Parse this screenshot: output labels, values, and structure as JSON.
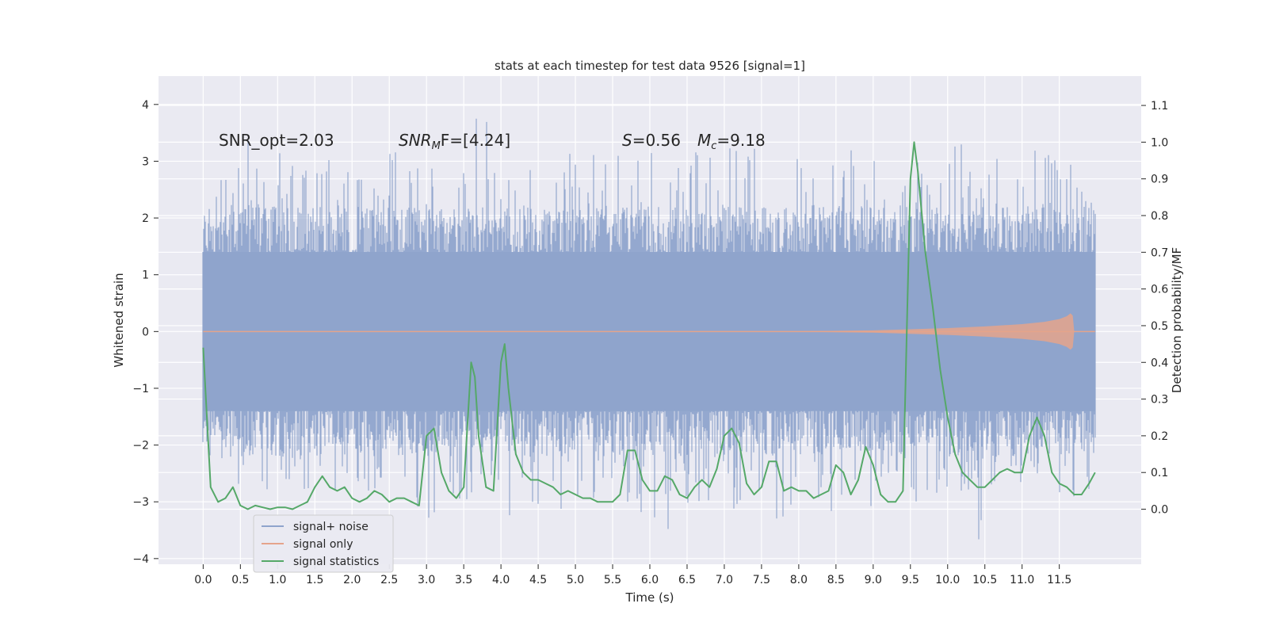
{
  "chart_data": {
    "type": "line",
    "title": "stats at each timestep for test data 9526 [signal=1]",
    "xlabel": "Time (s)",
    "ylabel": "Whitened strain",
    "y2label": "Detection probability/MF",
    "xlim": [
      -0.6,
      12.6
    ],
    "ylim": [
      -4.1,
      4.5
    ],
    "y2lim": [
      -0.15,
      1.18
    ],
    "xticks": [
      0.0,
      0.5,
      1.0,
      1.5,
      2.0,
      2.5,
      3.0,
      3.5,
      4.0,
      4.5,
      5.0,
      5.5,
      6.0,
      6.5,
      7.0,
      7.5,
      8.0,
      8.5,
      9.0,
      9.5,
      10.0,
      10.5,
      11.0,
      11.5
    ],
    "xtick_labels": [
      "0.0",
      "0.5",
      "1.0",
      "1.5",
      "2.0",
      "2.5",
      "3.0",
      "3.5",
      "4.0",
      "4.5",
      "5.0",
      "5.5",
      "6.0",
      "6.5",
      "7.0",
      "7.5",
      "8.0",
      "8.5",
      "9.0",
      "9.5",
      "10.0",
      "10.5",
      "11.0",
      "11.5"
    ],
    "yticks": [
      -4,
      -3,
      -2,
      -1,
      0,
      1,
      2,
      3,
      4
    ],
    "ytick_labels": [
      "−4",
      "−3",
      "−2",
      "−1",
      "0",
      "1",
      "2",
      "3",
      "4"
    ],
    "y2ticks": [
      0.0,
      0.1,
      0.2,
      0.3,
      0.4,
      0.5,
      0.6,
      0.7,
      0.8,
      0.9,
      1.0,
      1.1
    ],
    "y2tick_labels": [
      "0.0",
      "0.1",
      "0.2",
      "0.3",
      "0.4",
      "0.5",
      "0.6",
      "0.7",
      "0.8",
      "0.9",
      "1.0",
      "1.1"
    ],
    "grid": true,
    "legend_position": "lower-left",
    "annotations": {
      "snr_opt": "SNR_opt=2.03",
      "snr_mf_main": "SNR",
      "snr_mf_sub": "M",
      "snr_mf_rest": "F=[4.24]",
      "s_main": "S",
      "s_rest": "=0.56",
      "mc_main": "M",
      "mc_sub": "c",
      "mc_rest": "=9.18"
    },
    "noise_envelope": {
      "x": [
        0.0,
        0.25,
        0.5,
        0.75,
        1.0,
        1.25,
        1.5,
        1.75,
        2.0,
        2.25,
        2.5,
        2.75,
        3.0,
        3.25,
        3.5,
        3.75,
        4.0,
        4.25,
        4.5,
        4.75,
        5.0,
        5.25,
        5.5,
        5.75,
        6.0,
        6.25,
        6.5,
        6.75,
        7.0,
        7.25,
        7.5,
        7.75,
        8.0,
        8.25,
        8.5,
        8.75,
        9.0,
        9.25,
        9.5,
        9.75,
        10.0,
        10.25,
        10.5,
        10.75,
        11.0,
        11.25,
        11.5,
        11.75,
        11.98
      ],
      "upper": [
        2.5,
        2.8,
        3.9,
        2.9,
        3.4,
        3.0,
        2.8,
        3.5,
        3.0,
        2.7,
        3.3,
        3.1,
        3.6,
        2.9,
        3.5,
        4.0,
        3.4,
        3.0,
        2.8,
        3.2,
        3.9,
        3.1,
        3.3,
        2.9,
        3.3,
        3.0,
        4.0,
        3.1,
        3.4,
        3.6,
        3.3,
        2.8,
        3.2,
        3.0,
        3.1,
        3.6,
        3.2,
        3.0,
        3.5,
        3.4,
        3.3,
        4.1,
        3.2,
        3.0,
        3.1,
        3.3,
        3.2,
        3.0,
        2.7
      ],
      "lower": [
        -2.1,
        -2.6,
        -3.1,
        -2.9,
        -2.8,
        -2.7,
        -2.9,
        -3.0,
        -2.6,
        -3.2,
        -2.8,
        -3.0,
        -3.5,
        -2.9,
        -3.4,
        -2.8,
        -3.6,
        -3.0,
        -3.3,
        -3.1,
        -3.2,
        -3.0,
        -3.4,
        -3.0,
        -3.6,
        -3.7,
        -3.2,
        -3.0,
        -3.5,
        -3.0,
        -3.1,
        -3.4,
        -3.0,
        -3.2,
        -3.4,
        -3.0,
        -3.3,
        -3.0,
        -3.2,
        -3.1,
        -3.0,
        -3.6,
        -3.7,
        -3.0,
        -3.2,
        -2.9,
        -3.3,
        -3.0,
        -2.7
      ],
      "core": 1.4
    },
    "series": [
      {
        "name": "signal+ noise",
        "color": "#8fa4cc",
        "axis": "left"
      },
      {
        "name": "signal only",
        "color": "#e5a48b",
        "axis": "left",
        "x": [
          0.0,
          8.0,
          9.0,
          9.5,
          10.0,
          10.5,
          11.0,
          11.3,
          11.5,
          11.6,
          11.65,
          11.68,
          11.7
        ],
        "envelope": [
          0.0,
          0.005,
          0.02,
          0.04,
          0.06,
          0.09,
          0.13,
          0.17,
          0.22,
          0.27,
          0.32,
          0.28,
          0.0
        ]
      },
      {
        "name": "signal statistics",
        "color": "#55a868",
        "axis": "right",
        "x": [
          0.0,
          0.1,
          0.2,
          0.3,
          0.4,
          0.5,
          0.6,
          0.7,
          0.8,
          0.9,
          1.0,
          1.1,
          1.2,
          1.3,
          1.4,
          1.5,
          1.6,
          1.7,
          1.8,
          1.9,
          2.0,
          2.1,
          2.2,
          2.3,
          2.4,
          2.5,
          2.6,
          2.7,
          2.8,
          2.9,
          3.0,
          3.1,
          3.2,
          3.3,
          3.4,
          3.5,
          3.6,
          3.65,
          3.7,
          3.8,
          3.9,
          4.0,
          4.05,
          4.1,
          4.2,
          4.3,
          4.4,
          4.5,
          4.6,
          4.7,
          4.8,
          4.9,
          5.0,
          5.1,
          5.2,
          5.3,
          5.4,
          5.5,
          5.6,
          5.7,
          5.8,
          5.9,
          6.0,
          6.1,
          6.2,
          6.3,
          6.4,
          6.5,
          6.6,
          6.7,
          6.8,
          6.9,
          7.0,
          7.1,
          7.2,
          7.3,
          7.4,
          7.5,
          7.6,
          7.7,
          7.8,
          7.9,
          8.0,
          8.1,
          8.2,
          8.3,
          8.4,
          8.5,
          8.6,
          8.7,
          8.8,
          8.9,
          9.0,
          9.1,
          9.2,
          9.3,
          9.4,
          9.5,
          9.55,
          9.6,
          9.7,
          9.8,
          9.9,
          10.0,
          10.1,
          10.2,
          10.3,
          10.4,
          10.5,
          10.6,
          10.7,
          10.8,
          10.9,
          11.0,
          11.1,
          11.2,
          11.3,
          11.4,
          11.5,
          11.6,
          11.7,
          11.8,
          11.9,
          11.98
        ],
        "values": [
          0.44,
          0.06,
          0.02,
          0.03,
          0.06,
          0.01,
          0.0,
          0.01,
          0.005,
          0.0,
          0.005,
          0.005,
          0.0,
          0.01,
          0.02,
          0.06,
          0.09,
          0.06,
          0.05,
          0.06,
          0.03,
          0.02,
          0.03,
          0.05,
          0.04,
          0.02,
          0.03,
          0.03,
          0.02,
          0.01,
          0.2,
          0.22,
          0.1,
          0.05,
          0.03,
          0.06,
          0.4,
          0.36,
          0.2,
          0.06,
          0.05,
          0.4,
          0.45,
          0.33,
          0.15,
          0.1,
          0.08,
          0.08,
          0.07,
          0.06,
          0.04,
          0.05,
          0.04,
          0.03,
          0.03,
          0.02,
          0.02,
          0.02,
          0.04,
          0.16,
          0.16,
          0.08,
          0.05,
          0.05,
          0.09,
          0.08,
          0.04,
          0.03,
          0.06,
          0.08,
          0.06,
          0.11,
          0.2,
          0.22,
          0.18,
          0.07,
          0.04,
          0.06,
          0.13,
          0.13,
          0.05,
          0.06,
          0.05,
          0.05,
          0.03,
          0.04,
          0.05,
          0.12,
          0.1,
          0.04,
          0.08,
          0.17,
          0.12,
          0.04,
          0.02,
          0.02,
          0.05,
          0.9,
          1.0,
          0.92,
          0.7,
          0.55,
          0.38,
          0.25,
          0.15,
          0.1,
          0.08,
          0.06,
          0.06,
          0.08,
          0.1,
          0.11,
          0.1,
          0.1,
          0.2,
          0.25,
          0.2,
          0.1,
          0.07,
          0.06,
          0.04,
          0.04,
          0.07,
          0.1
        ]
      }
    ]
  }
}
